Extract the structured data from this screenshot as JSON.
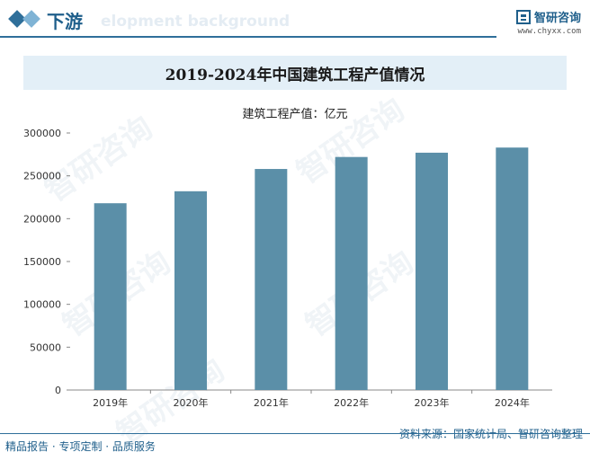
{
  "header": {
    "section_title": "下游",
    "watermark_text": "elopment background",
    "brand_name": "智研咨询",
    "brand_url": "www.chyxx.com"
  },
  "chart_data": {
    "type": "bar",
    "title": "2019-2024年中国建筑工程产值情况",
    "series_label": "建筑工程产值：亿元",
    "categories": [
      "2019年",
      "2020年",
      "2021年",
      "2022年",
      "2023年",
      "2024年"
    ],
    "values": [
      218000,
      232000,
      258000,
      272000,
      277000,
      283000
    ],
    "ylim": [
      0,
      300000
    ],
    "yticks": [
      0,
      50000,
      100000,
      150000,
      200000,
      250000,
      300000
    ],
    "ytick_labels": [
      "0",
      "50000",
      "100000",
      "150000",
      "200000",
      "250000",
      "300000"
    ],
    "bar_color": "#5b8fa8",
    "xlabel": "",
    "ylabel": ""
  },
  "footer": {
    "source": "资料来源：国家统计局、智研咨询整理",
    "tagline": "精品报告 · 专项定制 · 品质服务"
  },
  "colors": {
    "accent": "#1f5f8b",
    "title_band": "#e3eff7"
  }
}
